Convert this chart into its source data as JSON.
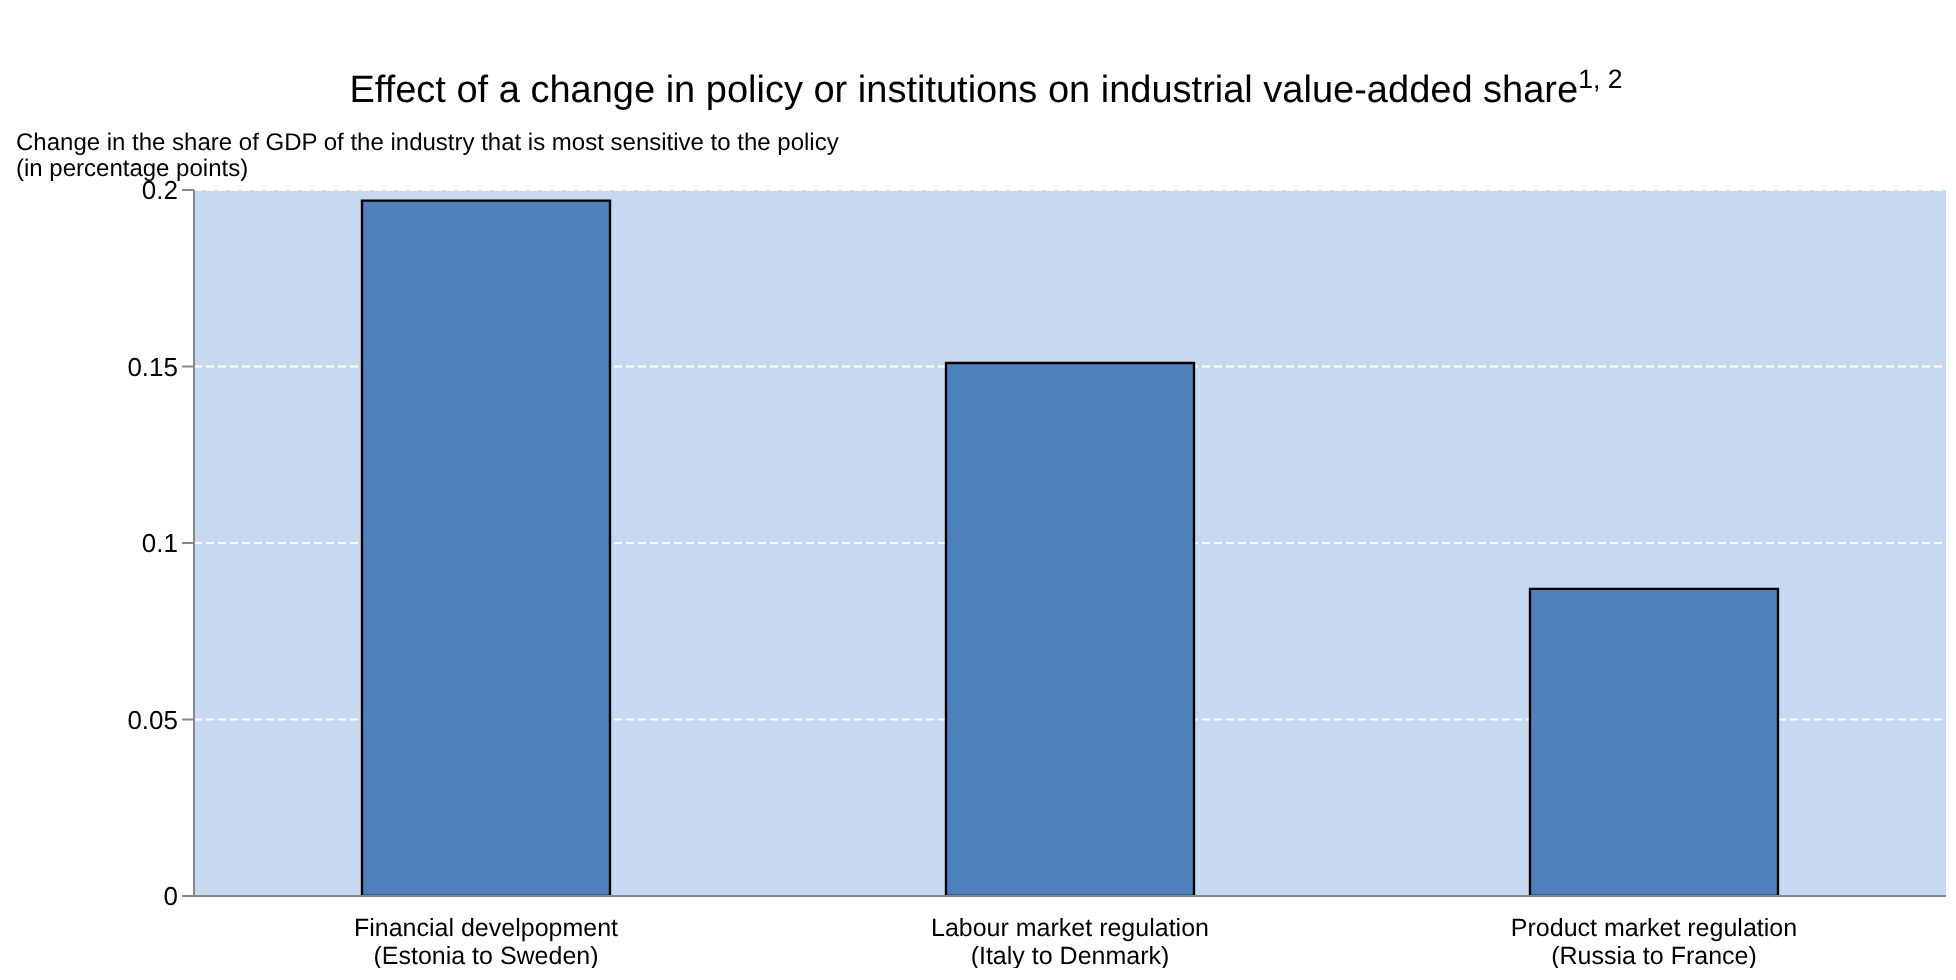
{
  "chart_data": {
    "type": "bar",
    "title": "Effect of a change in policy or institutions on industrial value-added share$^{1, 2}$",
    "ylabel": "Change in the share of GDP of the industry that is most sensitive to the policy\n(in percentage points)",
    "categories": [
      "Financial develpopment\n(Estonia to Sweden)",
      "Labour market regulation\n(Italy to Denmark)",
      "Product market regulation\n(Russia to France)"
    ],
    "values": [
      0.197,
      0.151,
      0.087
    ],
    "color": "#4f81bd",
    "ylim": [
      0,
      0.2
    ],
    "yticks": [
      0,
      0.05,
      0.1,
      0.15,
      0.2
    ],
    "grid": "y"
  }
}
